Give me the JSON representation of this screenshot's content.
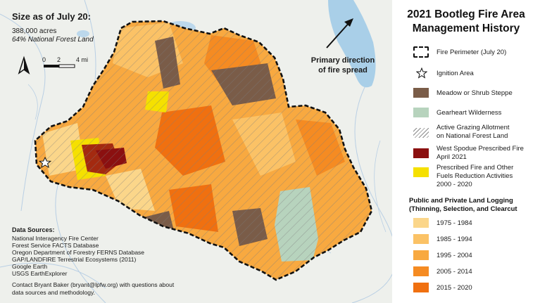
{
  "map": {
    "size_title": "Size as of July 20:",
    "size_acres": "388,000 acres",
    "size_national_forest": "64% National Forest Land",
    "scale_labels": [
      "0",
      "2",
      "4 mi"
    ],
    "direction_label_line1": "Primary direction",
    "direction_label_line2": "of fire spread",
    "sources_title": "Data Sources:",
    "sources": [
      "National Interagency Fire Center",
      "Forest Service FACTS Database",
      "Oregon Department of Forestry FERNS Database",
      "GAP/LANDFIRE Terrestrial Ecosystems (2011)",
      "Google Earth",
      "USGS EarthExplorer"
    ],
    "contact_line1": "Contact Bryant Baker (bryant@lpfw.org) with questions about",
    "contact_line2": "data sources and methodology."
  },
  "legend": {
    "title_line1": "2021 Bootleg Fire Area",
    "title_line2": "Management History",
    "items": [
      {
        "label": "Fire Perimeter (July 20)",
        "label2": "",
        "icon": "dashed-box"
      },
      {
        "label": "Ignition Area",
        "label2": "",
        "icon": "star"
      },
      {
        "label": "Meadow or Shrub Steppe",
        "label2": "",
        "color": "#7a5c48"
      },
      {
        "label": "Gearheart Wilderness",
        "label2": "",
        "color": "#b7d3bd"
      },
      {
        "label": "Active Grazing Allotment",
        "label2": "on National Forest Land",
        "icon": "hatch"
      },
      {
        "label": "West Spodue Prescribed Fire",
        "label2": "April 2021",
        "color": "#8b1010"
      },
      {
        "label": "Prescribed Fire and Other",
        "label2": "Fuels Reduction Activities",
        "label3": "2000 - 2020",
        "color": "#f5e000"
      }
    ],
    "logging_title_line1": "Public and Private Land Logging",
    "logging_title_line2": "(Thinning, Selection, and Clearcut",
    "logging": [
      {
        "label": "1975 - 1984",
        "color": "#fbd68a"
      },
      {
        "label": "1985 - 1994",
        "color": "#fbc266"
      },
      {
        "label": "1995 - 2004",
        "color": "#f8a940"
      },
      {
        "label": "2005 - 2014",
        "color": "#f58b22"
      },
      {
        "label": "2015 - 2020",
        "color": "#f07010"
      }
    ]
  }
}
